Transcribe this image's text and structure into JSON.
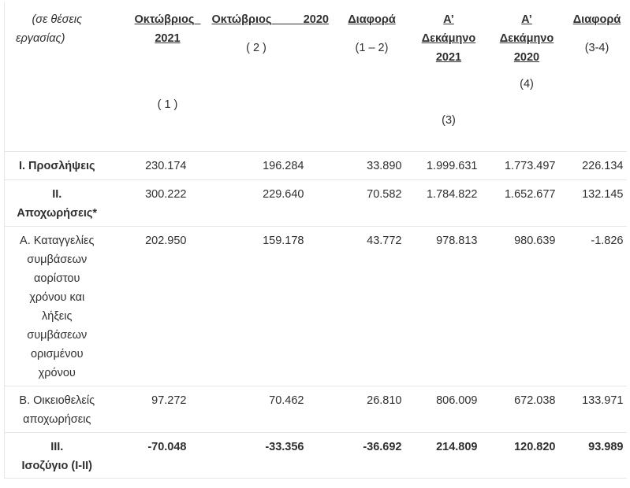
{
  "header": {
    "units_line1": "(σε θέσεις",
    "units_line2": "εργασίας)",
    "col1_line1": "Οκτώβριος",
    "col1_line2": "2021",
    "col1_note": "( 1 )",
    "col2_line1": "Οκτώβριος",
    "col2_year": "2020",
    "col2_note": "( 2 )",
    "col3_line1": "Διαφορά",
    "col3_note": "(1 – 2)",
    "col4_line1": "Α’",
    "col4_line2": "Δεκάμηνο",
    "col4_line3": "2021",
    "col4_note": "(3)",
    "col5_line1": "Α’",
    "col5_line2": "Δεκάμηνο",
    "col5_line3": "2020",
    "col5_note": "(4)",
    "col6_line1": "Διαφορά",
    "col6_note": "(3-4)"
  },
  "rows": [
    {
      "label_lines": [
        "Ι. Προσλήψεις"
      ],
      "bold_label": true,
      "values": [
        "230.174",
        "196.284",
        "33.890",
        "1.999.631",
        "1.773.497",
        "226.134"
      ]
    },
    {
      "label_lines": [
        "ΙΙ.",
        "Αποχωρήσεις*"
      ],
      "bold_label": true,
      "values": [
        "300.222",
        "229.640",
        "70.582",
        "1.784.822",
        "1.652.677",
        "132.145"
      ]
    },
    {
      "label_lines": [
        "Α. Καταγγελίες",
        "συμβάσεων",
        "αορίστου",
        "χρόνου  και",
        "λήξεις",
        "συμβάσεων",
        "ορισμένου",
        "χρόνου"
      ],
      "bold_label": false,
      "values": [
        "202.950",
        "159.178",
        "43.772",
        "978.813",
        "980.639",
        "-1.826"
      ]
    },
    {
      "label_lines": [
        "Β. Οικειοθελείς",
        "αποχωρήσεις"
      ],
      "bold_label": false,
      "values": [
        "97.272",
        "70.462",
        "26.810",
        "806.009",
        "672.038",
        "133.971"
      ]
    },
    {
      "label_lines": [
        "ΙΙΙ.",
        "Ισοζύγιο (Ι-ΙΙ)"
      ],
      "bold_label": true,
      "values": [
        "-70.048",
        "-33.356",
        "-36.692",
        "214.809",
        "120.820",
        "93.989"
      ]
    }
  ]
}
